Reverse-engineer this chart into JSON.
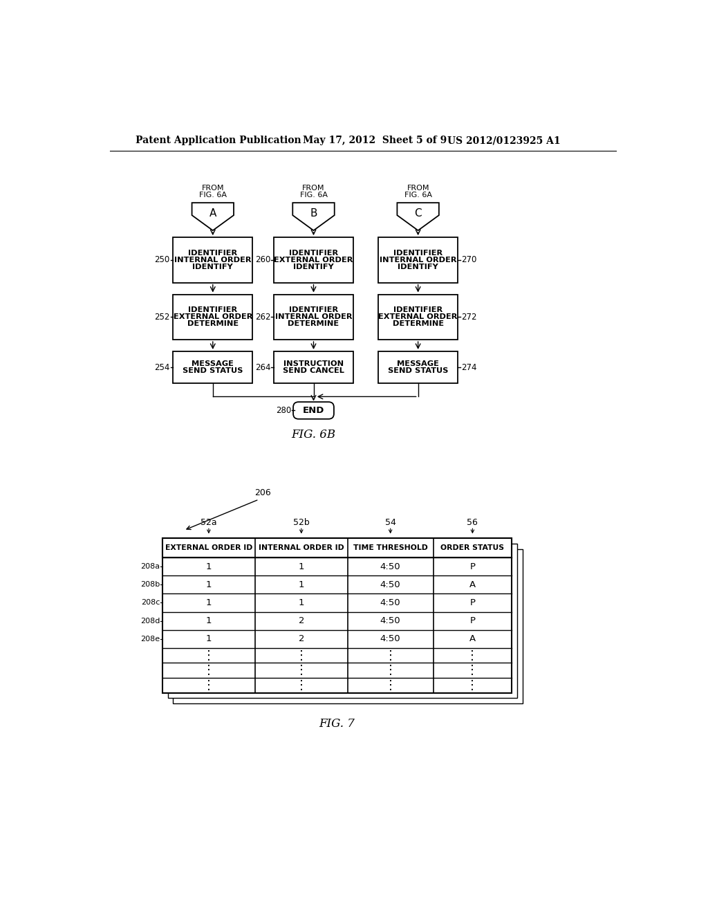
{
  "header_left": "Patent Application Publication",
  "header_mid": "May 17, 2012  Sheet 5 of 9",
  "header_right": "US 2012/0123925 A1",
  "fig6b_label": "FIG. 6B",
  "fig7_label": "FIG. 7",
  "bg_color": "#ffffff",
  "flowchart": {
    "connectors": [
      {
        "label": "A",
        "line1": "FROM",
        "line2": "FIG. 6A"
      },
      {
        "label": "B",
        "line1": "FROM",
        "line2": "FIG. 6A"
      },
      {
        "label": "C",
        "line1": "FROM",
        "line2": "FIG. 6A"
      }
    ],
    "rows": [
      [
        {
          "id": "250",
          "lines": [
            "IDENTIFY",
            "INTERNAL ORDER",
            "IDENTIFIER"
          ],
          "side": "left"
        },
        {
          "id": "260",
          "lines": [
            "IDENTIFY",
            "EXTERNAL ORDER",
            "IDENTIFIER"
          ],
          "side": "left"
        },
        {
          "id": "270",
          "lines": [
            "IDENTIFY",
            "INTERNAL ORDER",
            "IDENTIFIER"
          ],
          "side": "right"
        }
      ],
      [
        {
          "id": "252",
          "lines": [
            "DETERMINE",
            "EXTERNAL ORDER",
            "IDENTIFIER"
          ],
          "side": "left"
        },
        {
          "id": "262",
          "lines": [
            "DETERMINE",
            "INTERNAL ORDER",
            "IDENTIFIER"
          ],
          "side": "left"
        },
        {
          "id": "272",
          "lines": [
            "DETERMINE",
            "EXTERNAL ORDER",
            "IDENTIFIER"
          ],
          "side": "right"
        }
      ],
      [
        {
          "id": "254",
          "lines": [
            "SEND STATUS",
            "MESSAGE"
          ],
          "side": "left"
        },
        {
          "id": "264",
          "lines": [
            "SEND CANCEL",
            "INSTRUCTION"
          ],
          "side": "left"
        },
        {
          "id": "274",
          "lines": [
            "SEND STATUS",
            "MESSAGE"
          ],
          "side": "right"
        }
      ]
    ],
    "end_label": "280",
    "end_text": "END"
  },
  "table": {
    "label": "206",
    "col_labels": [
      "52a",
      "52b",
      "54",
      "56"
    ],
    "headers": [
      "EXTERNAL ORDER ID",
      "INTERNAL ORDER ID",
      "TIME THRESHOLD",
      "ORDER STATUS"
    ],
    "data_rows": [
      {
        "id": "208a",
        "data": [
          "1",
          "1",
          "4:50",
          "P"
        ]
      },
      {
        "id": "208b",
        "data": [
          "1",
          "1",
          "4:50",
          "A"
        ]
      },
      {
        "id": "208c",
        "data": [
          "1",
          "1",
          "4:50",
          "P"
        ]
      },
      {
        "id": "208d",
        "data": [
          "1",
          "2",
          "4:50",
          "P"
        ]
      },
      {
        "id": "208e",
        "data": [
          "1",
          "2",
          "4:50",
          "A"
        ]
      },
      {
        "id": "",
        "data": [
          "⋮",
          "⋮",
          "⋮",
          "⋮"
        ]
      }
    ]
  }
}
